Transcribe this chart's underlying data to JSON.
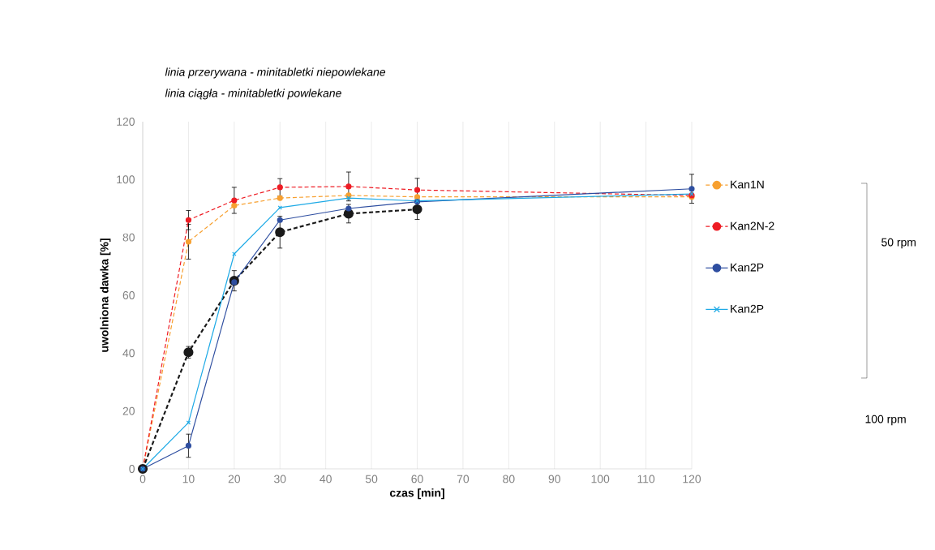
{
  "chart_data": {
    "type": "line",
    "xlabel": "czas [min]",
    "ylabel": "uwolniona dawka  [%]",
    "xlim": [
      0,
      120
    ],
    "ylim": [
      0,
      120
    ],
    "xticks": [
      0,
      10,
      20,
      30,
      40,
      50,
      60,
      70,
      80,
      90,
      100,
      110,
      120
    ],
    "yticks": [
      0,
      20,
      40,
      60,
      80,
      100,
      120
    ],
    "grid": "x",
    "legend": "right",
    "x": [
      0,
      10,
      20,
      30,
      45,
      60,
      120
    ],
    "series": [
      {
        "name": "Kan1N",
        "color": "#f7a030",
        "marker": "circle",
        "line_style": "dashed",
        "values": [
          0,
          78.5,
          91,
          93.6,
          94.5,
          94,
          94
        ],
        "errors": [
          null,
          6,
          null,
          null,
          null,
          null,
          null
        ]
      },
      {
        "name": "Kan2N-2",
        "color": "#ee1c24",
        "marker": "circle",
        "line_style": "dashed",
        "values": [
          0,
          86,
          92.8,
          97.3,
          97.6,
          96.4,
          94.5
        ],
        "errors": [
          null,
          3.3,
          4.5,
          3,
          5,
          4,
          null
        ]
      },
      {
        "color": "#1a1a1a",
        "marker": "circle",
        "line_style": "dashed",
        "values": [
          0,
          40.3,
          65,
          81.8,
          88.2,
          89.7,
          null
        ],
        "errors": [
          null,
          2,
          3.5,
          5.5,
          3.2,
          3.5,
          null
        ]
      },
      {
        "name": "Kan2P",
        "color": "#2e4ea0",
        "marker": "circle",
        "line_style": "solid",
        "values": [
          0,
          8,
          64.5,
          86,
          90,
          92.3,
          96.8
        ],
        "errors": [
          null,
          4,
          null,
          null,
          null,
          null,
          5
        ]
      },
      {
        "name": "Kan2P",
        "color": "#1eaae6",
        "marker": "cross",
        "line_style": "solid",
        "values": [
          0,
          16,
          74.3,
          90.3,
          93.6,
          92.6,
          95
        ]
      }
    ],
    "annotations": [
      "linia przerywana - minitabletki niepowlekane",
      "linia ciągła - minitabletki powlekane",
      "50 rpm",
      "100 rpm"
    ]
  }
}
